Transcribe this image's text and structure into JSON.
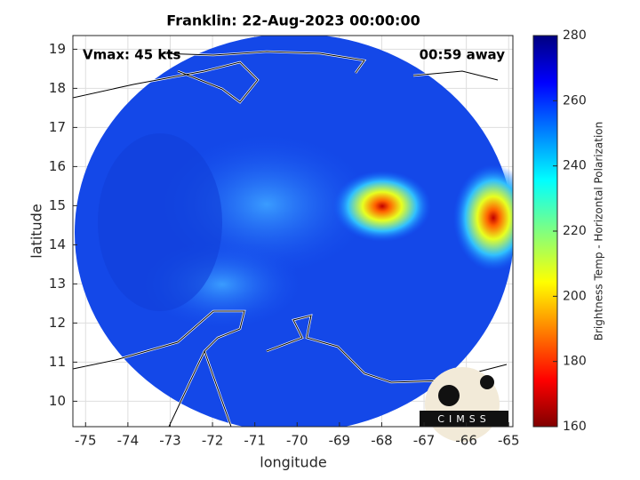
{
  "title": "Franklin: 22-Aug-2023 00:00:00",
  "annotations": [
    "Vmax: 45 kts",
    "00:59 away"
  ],
  "xlabel": "longitude",
  "ylabel": "latitude",
  "xlim": [
    -75.3,
    -64.9
  ],
  "xticks": [
    -75,
    -74,
    -73,
    -72,
    -71,
    -70,
    -69,
    -68,
    -67,
    -66,
    -65
  ],
  "ylim": [
    9.35,
    19.35
  ],
  "yticks": [
    10,
    11,
    12,
    13,
    14,
    15,
    16,
    17,
    18,
    19
  ],
  "grid": true,
  "colorbar": {
    "label": "Brightness Temp - Horizontal Polarization",
    "lim": [
      160,
      280
    ],
    "ticks": [
      160,
      180,
      200,
      220,
      240,
      260,
      280
    ]
  },
  "logo": "CIMSS"
}
